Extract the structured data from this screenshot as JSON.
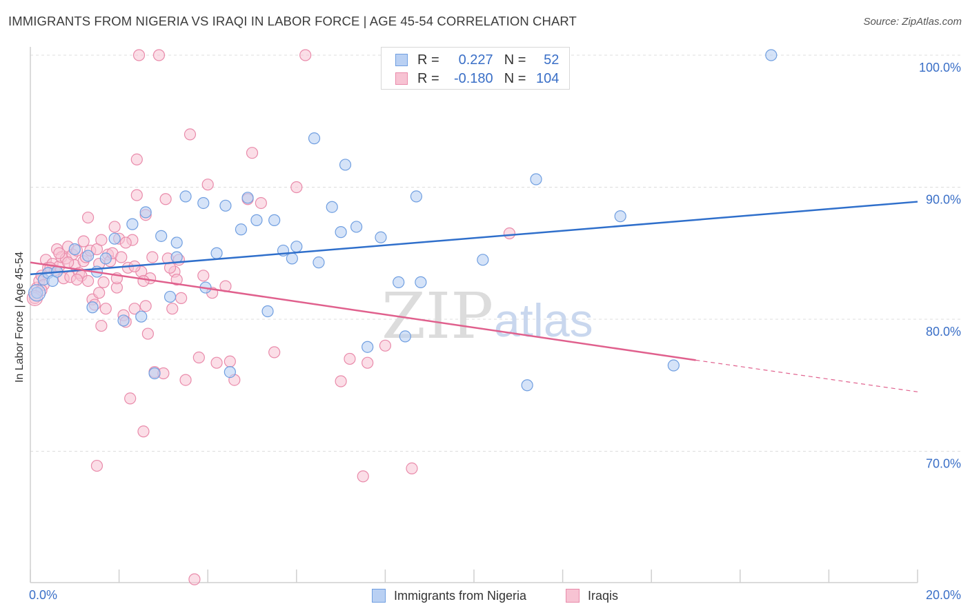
{
  "title": "IMMIGRANTS FROM NIGERIA VS IRAQI IN LABOR FORCE | AGE 45-54 CORRELATION CHART",
  "source": "Source: ZipAtlas.com",
  "watermark": {
    "zip": "ZIP",
    "atlas": "atlas"
  },
  "legend_top": {
    "rows": [
      {
        "r_label": "R =",
        "r_value": "0.227",
        "n_label": "N =",
        "n_value": "52"
      },
      {
        "r_label": "R =",
        "r_value": "-0.180",
        "n_label": "N =",
        "n_value": "104"
      }
    ]
  },
  "colors": {
    "nigeria_fill": "#b9d0f3",
    "nigeria_stroke": "#6f9ee0",
    "nigeria_line": "#2f6fcb",
    "iraqi_fill": "#f7c3d3",
    "iraqi_stroke": "#e98aaa",
    "iraqi_line": "#e0608d",
    "grid": "#dcdcdc",
    "tick_label": "#3a6fc7"
  },
  "chart_data": {
    "type": "scatter",
    "title": "IMMIGRANTS FROM NIGERIA VS IRAQI IN LABOR FORCE | AGE 45-54 CORRELATION CHART",
    "xlabel": "",
    "ylabel": "In Labor Force | Age 45-54",
    "xlim": [
      0,
      20
    ],
    "ylim": [
      60,
      101
    ],
    "x_tick_labels": [
      "0.0%",
      "20.0%"
    ],
    "y_ticks": [
      70,
      80,
      90,
      100
    ],
    "y_tick_labels": [
      "70.0%",
      "80.0%",
      "90.0%",
      "100.0%"
    ],
    "grid": "horizontal dashed",
    "legend_placement": "bottom",
    "series": [
      {
        "name": "Immigrants from Nigeria",
        "trend": {
          "x0": 0,
          "y0": 83.4,
          "x1": 20,
          "y1": 88.9
        },
        "points": [
          [
            0.15,
            82.0
          ],
          [
            0.3,
            83.0
          ],
          [
            0.4,
            83.5
          ],
          [
            0.5,
            82.9
          ],
          [
            0.6,
            83.6
          ],
          [
            1.0,
            85.3
          ],
          [
            1.3,
            84.8
          ],
          [
            1.5,
            83.6
          ],
          [
            1.4,
            80.9
          ],
          [
            1.7,
            84.6
          ],
          [
            1.9,
            86.1
          ],
          [
            2.1,
            79.9
          ],
          [
            2.3,
            87.2
          ],
          [
            2.5,
            80.2
          ],
          [
            2.6,
            88.1
          ],
          [
            2.8,
            75.9
          ],
          [
            2.95,
            86.3
          ],
          [
            3.15,
            81.7
          ],
          [
            3.3,
            84.7
          ],
          [
            3.3,
            85.8
          ],
          [
            3.5,
            89.3
          ],
          [
            3.9,
            88.8
          ],
          [
            3.95,
            82.4
          ],
          [
            4.2,
            85.0
          ],
          [
            4.4,
            88.6
          ],
          [
            4.5,
            76.0
          ],
          [
            4.75,
            86.8
          ],
          [
            4.9,
            89.2
          ],
          [
            5.1,
            87.5
          ],
          [
            5.35,
            80.6
          ],
          [
            5.5,
            87.5
          ],
          [
            5.7,
            85.2
          ],
          [
            5.9,
            84.6
          ],
          [
            6.0,
            85.5
          ],
          [
            6.4,
            93.7
          ],
          [
            6.5,
            84.3
          ],
          [
            6.8,
            88.5
          ],
          [
            7.0,
            86.6
          ],
          [
            7.1,
            91.7
          ],
          [
            7.35,
            87.0
          ],
          [
            7.6,
            77.9
          ],
          [
            7.9,
            86.2
          ],
          [
            8.3,
            82.8
          ],
          [
            8.45,
            78.7
          ],
          [
            8.7,
            89.3
          ],
          [
            8.8,
            82.8
          ],
          [
            10.2,
            84.5
          ],
          [
            11.2,
            75.0
          ],
          [
            11.4,
            90.6
          ],
          [
            13.3,
            87.8
          ],
          [
            14.5,
            76.5
          ],
          [
            16.7,
            100.0
          ]
        ]
      },
      {
        "name": "Iraqis",
        "trend": {
          "x0": 0,
          "y0": 84.3,
          "x1": 15,
          "y1": 76.9
        },
        "trend_dashed": {
          "x0": 15,
          "y0": 76.9,
          "x1": 20,
          "y1": 74.5
        },
        "points": [
          [
            0.1,
            81.6
          ],
          [
            0.15,
            82.4
          ],
          [
            0.2,
            82.9
          ],
          [
            0.25,
            83.3
          ],
          [
            0.3,
            82.6
          ],
          [
            0.35,
            84.5
          ],
          [
            0.4,
            83.9
          ],
          [
            0.5,
            84.2
          ],
          [
            0.55,
            83.7
          ],
          [
            0.6,
            85.3
          ],
          [
            0.65,
            84.0
          ],
          [
            0.7,
            84.7
          ],
          [
            0.75,
            83.1
          ],
          [
            0.8,
            84.6
          ],
          [
            0.85,
            85.5
          ],
          [
            0.9,
            83.2
          ],
          [
            0.95,
            84.9
          ],
          [
            1.0,
            84.1
          ],
          [
            1.05,
            85.2
          ],
          [
            1.1,
            83.5
          ],
          [
            1.15,
            83.3
          ],
          [
            1.2,
            84.4
          ],
          [
            1.25,
            84.7
          ],
          [
            1.3,
            82.9
          ],
          [
            1.3,
            87.7
          ],
          [
            1.35,
            85.2
          ],
          [
            1.4,
            81.5
          ],
          [
            1.45,
            81.1
          ],
          [
            1.5,
            85.3
          ],
          [
            1.55,
            82.0
          ],
          [
            1.6,
            79.5
          ],
          [
            1.6,
            86.0
          ],
          [
            1.65,
            82.8
          ],
          [
            1.7,
            80.8
          ],
          [
            1.75,
            84.9
          ],
          [
            1.8,
            84.4
          ],
          [
            1.85,
            85.0
          ],
          [
            1.9,
            87.0
          ],
          [
            1.95,
            82.4
          ],
          [
            2.0,
            86.1
          ],
          [
            2.05,
            84.7
          ],
          [
            2.1,
            80.3
          ],
          [
            2.15,
            79.8
          ],
          [
            2.2,
            83.9
          ],
          [
            2.25,
            74.0
          ],
          [
            2.3,
            86.0
          ],
          [
            2.35,
            80.8
          ],
          [
            2.4,
            89.4
          ],
          [
            2.4,
            92.1
          ],
          [
            2.5,
            83.6
          ],
          [
            2.55,
            71.5
          ],
          [
            2.6,
            87.9
          ],
          [
            2.6,
            81.0
          ],
          [
            2.65,
            78.9
          ],
          [
            2.7,
            83.1
          ],
          [
            2.8,
            76.0
          ],
          [
            2.9,
            100.0
          ],
          [
            3.0,
            75.9
          ],
          [
            3.05,
            89.1
          ],
          [
            3.1,
            84.6
          ],
          [
            3.2,
            80.8
          ],
          [
            3.25,
            83.6
          ],
          [
            3.3,
            83.0
          ],
          [
            3.35,
            84.5
          ],
          [
            3.4,
            81.6
          ],
          [
            3.5,
            75.4
          ],
          [
            3.6,
            94.0
          ],
          [
            3.7,
            60.3
          ],
          [
            3.8,
            77.1
          ],
          [
            3.9,
            83.3
          ],
          [
            4.0,
            90.2
          ],
          [
            4.1,
            82.0
          ],
          [
            4.2,
            76.7
          ],
          [
            4.4,
            82.5
          ],
          [
            4.5,
            76.8
          ],
          [
            4.6,
            75.4
          ],
          [
            4.9,
            89.1
          ],
          [
            5.0,
            92.6
          ],
          [
            5.2,
            88.8
          ],
          [
            5.5,
            77.5
          ],
          [
            6.0,
            90.0
          ],
          [
            6.2,
            100.0
          ],
          [
            7.0,
            75.3
          ],
          [
            7.2,
            77.0
          ],
          [
            7.5,
            68.1
          ],
          [
            7.6,
            76.7
          ],
          [
            8.0,
            78.0
          ],
          [
            8.6,
            68.7
          ],
          [
            10.8,
            86.5
          ],
          [
            1.5,
            68.9
          ],
          [
            2.45,
            100.0
          ],
          [
            0.25,
            82.2
          ],
          [
            0.45,
            83.9
          ],
          [
            0.65,
            85.0
          ],
          [
            0.85,
            84.3
          ],
          [
            1.05,
            83.0
          ],
          [
            1.2,
            85.9
          ],
          [
            1.55,
            84.2
          ],
          [
            1.95,
            83.1
          ],
          [
            2.15,
            85.8
          ],
          [
            2.35,
            84.0
          ],
          [
            2.55,
            82.9
          ],
          [
            2.75,
            84.7
          ],
          [
            3.15,
            83.9
          ]
        ]
      }
    ]
  },
  "bottom_legend": [
    {
      "label": "Immigrants from Nigeria"
    },
    {
      "label": "Iraqis"
    }
  ]
}
